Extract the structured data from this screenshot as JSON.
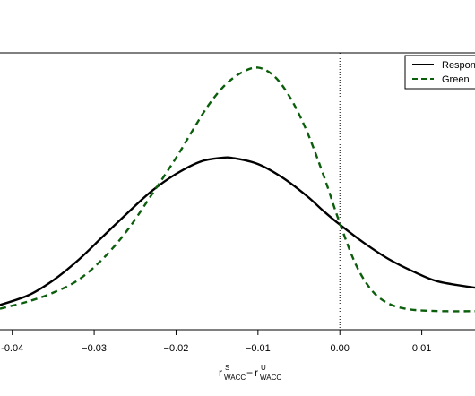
{
  "chart_data": {
    "type": "line",
    "xlabel_parts": {
      "first_base": "r",
      "first_sup": "S",
      "first_sub": "WACC",
      "operator": "−",
      "second_base": "r",
      "second_sup": "U",
      "second_sub": "WACC"
    },
    "xlim": [
      -0.0415,
      0.0165
    ],
    "ylim": [
      0,
      1
    ],
    "x_ticks": [
      -0.04,
      -0.03,
      -0.02,
      -0.01,
      0.0,
      0.01
    ],
    "x_tick_labels": [
      "-0.04",
      "−0.03",
      "−0.02",
      "−0.01",
      "0.00",
      "0.01"
    ],
    "reference_line_x": 0.0,
    "legend": {
      "placement": "top-right",
      "entries": [
        "Respon",
        "Green"
      ]
    },
    "series": [
      {
        "name": "Respon",
        "style": "solid",
        "color": "#000000",
        "x": [
          -0.0415,
          -0.038,
          -0.035,
          -0.032,
          -0.029,
          -0.026,
          -0.023,
          -0.02,
          -0.017,
          -0.0145,
          -0.013,
          -0.01,
          -0.007,
          -0.004,
          -0.002,
          0.0,
          0.003,
          0.006,
          0.009,
          0.012,
          0.0165
        ],
        "y": [
          0.06,
          0.1,
          0.16,
          0.24,
          0.335,
          0.43,
          0.52,
          0.59,
          0.64,
          0.655,
          0.654,
          0.63,
          0.575,
          0.5,
          0.44,
          0.385,
          0.31,
          0.245,
          0.195,
          0.155,
          0.13
        ]
      },
      {
        "name": "Green",
        "style": "dashed",
        "color": "#0b5e0b",
        "x": [
          -0.0415,
          -0.038,
          -0.035,
          -0.032,
          -0.029,
          -0.026,
          -0.023,
          -0.02,
          -0.018,
          -0.016,
          -0.014,
          -0.012,
          -0.01,
          -0.008,
          -0.006,
          -0.004,
          -0.002,
          0.0,
          0.002,
          0.004,
          0.006,
          0.008,
          0.01,
          0.013,
          0.0165
        ],
        "y": [
          0.045,
          0.075,
          0.11,
          0.16,
          0.245,
          0.36,
          0.505,
          0.655,
          0.765,
          0.87,
          0.95,
          1.0,
          1.02,
          0.985,
          0.895,
          0.76,
          0.585,
          0.39,
          0.22,
          0.115,
          0.065,
          0.045,
          0.038,
          0.035,
          0.035
        ]
      }
    ]
  }
}
